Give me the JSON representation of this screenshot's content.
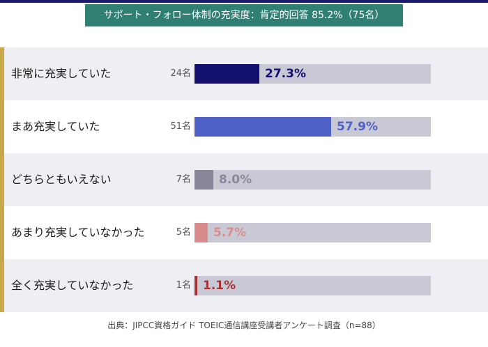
{
  "title": "サポート・フォロー体制の充実度：肯定的回答 85.2%（75名）",
  "source": "出典：JIPCC資格ガイド TOEIC通信講座受講者アンケート調査（n=88）",
  "chart_data": {
    "type": "bar",
    "orientation": "horizontal",
    "title": "サポート・フォロー体制の充実度：肯定的回答 85.2%（75名）",
    "xlim": [
      0,
      100
    ],
    "categories": [
      "非常に充実していた",
      "まあ充実していた",
      "どちらともいえない",
      "あまり充実していなかった",
      "全く充実していなかった"
    ],
    "values": [
      27.3,
      57.9,
      8.0,
      5.7,
      1.1
    ],
    "rows": [
      {
        "label": "非常に充実していた",
        "count": "24名",
        "value": 27.3,
        "pct_label": "27.3%",
        "color": "#13106f"
      },
      {
        "label": "まあ充実していた",
        "count": "51名",
        "value": 57.9,
        "pct_label": "57.9%",
        "color": "#4f60c6"
      },
      {
        "label": "どちらともいえない",
        "count": "7名",
        "value": 8.0,
        "pct_label": "8.0%",
        "color": "#878799"
      },
      {
        "label": "あまり充実していなかった",
        "count": "5名",
        "value": 5.7,
        "pct_label": "5.7%",
        "color": "#d98c8c"
      },
      {
        "label": "全く充実していなかった",
        "count": "1名",
        "value": 1.1,
        "pct_label": "1.1%",
        "color": "#a83232"
      }
    ],
    "track_color": "#c9c9d6"
  }
}
